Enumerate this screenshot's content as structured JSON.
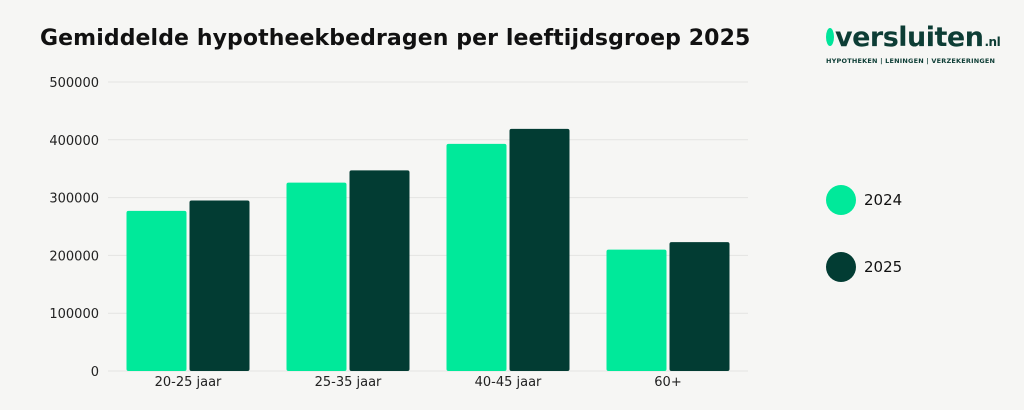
{
  "header": {
    "title": "Gemiddelde hypotheekbedragen per leeftijdsgroep 2025"
  },
  "logo": {
    "o": "o",
    "word": "versluiten",
    "suffix": ".nl",
    "tagline": "HYPOTHEKEN | LENINGEN | VERZEKERINGEN"
  },
  "colors": {
    "series_2024": "#00e99a",
    "series_2025": "#023c33",
    "grid": "#e4e4e2",
    "background": "#f6f6f4"
  },
  "chart_data": {
    "type": "bar",
    "title": "Gemiddelde hypotheekbedragen per leeftijdsgroep 2025",
    "xlabel": "",
    "ylabel": "",
    "categories": [
      "20-25 jaar",
      "25-35 jaar",
      "40-45 jaar",
      "60+"
    ],
    "series": [
      {
        "name": "2024",
        "values": [
          277000,
          326000,
          393000,
          210000
        ]
      },
      {
        "name": "2025",
        "values": [
          295000,
          347000,
          419000,
          223000
        ]
      }
    ],
    "ylim": [
      0,
      500000
    ],
    "yticks": [
      "0",
      "100000",
      "200000",
      "300000",
      "400000",
      "500000"
    ],
    "grid": true,
    "legend_position": "right"
  }
}
